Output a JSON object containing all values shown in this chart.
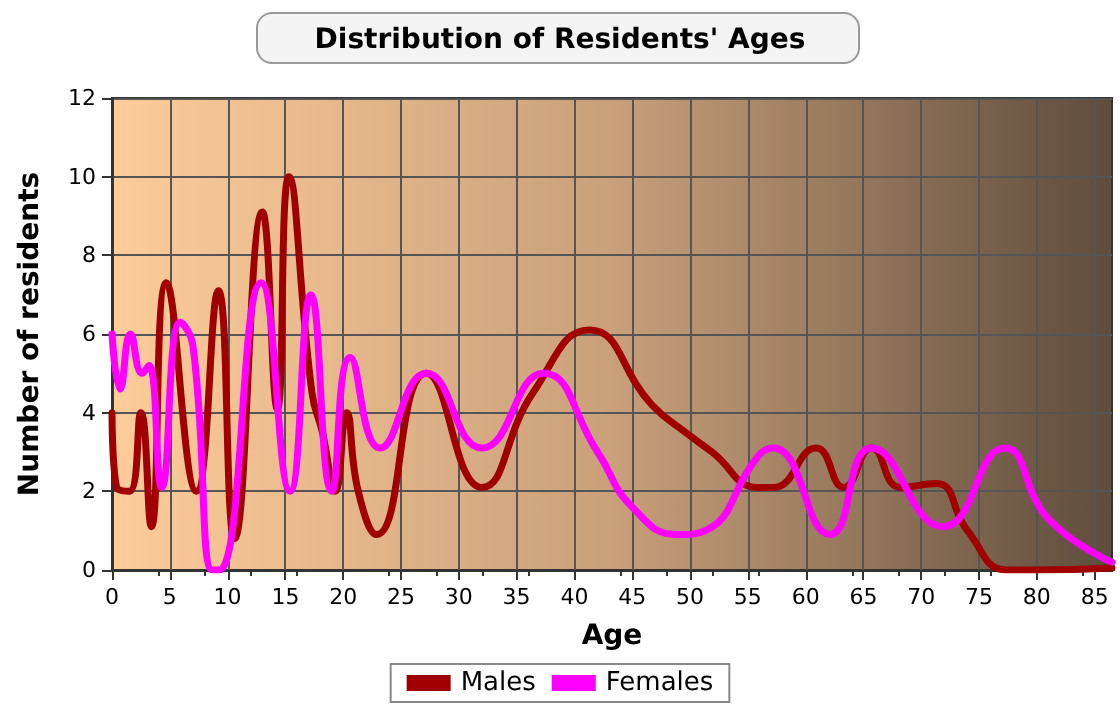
{
  "chart_data": {
    "type": "line",
    "title": "Distribution of Residents' Ages",
    "xlabel": "Age",
    "ylabel": "Number of residents",
    "xlim": [
      0,
      86.5
    ],
    "xticks": [
      0,
      5,
      10,
      15,
      20,
      25,
      30,
      35,
      40,
      45,
      50,
      55,
      60,
      65,
      70,
      75,
      80,
      85
    ],
    "ylim": [
      0,
      12
    ],
    "yticks": [
      0,
      2,
      4,
      6,
      8,
      10,
      12
    ],
    "grid": true,
    "legend": "bottom",
    "marker": "none",
    "line_style": "solid",
    "series": [
      {
        "name": "Males",
        "color": "#a00000",
        "x": [
          0,
          0.4,
          1.5,
          2.5,
          3.4,
          4.7,
          7.3,
          9.2,
          10.6,
          13,
          14.3,
          15.3,
          17.3,
          18.2,
          19.3,
          20.3,
          21.3,
          22.9,
          27.2,
          32,
          36.4,
          41.3,
          46.7,
          49.6,
          51.9,
          55.9,
          57.2,
          60.9,
          63.3,
          65.7,
          68.2,
          71.3,
          74,
          77.4,
          80,
          86.5
        ],
        "values": [
          4,
          2.1,
          2,
          4,
          1.1,
          7.3,
          2,
          7.1,
          0.8,
          9.1,
          4.1,
          10,
          4.5,
          3.5,
          2,
          4,
          2,
          0.9,
          5,
          2.1,
          4.5,
          6.1,
          4.2,
          3.5,
          3,
          2.1,
          2.1,
          3.1,
          2.1,
          3.1,
          2.1,
          2.2,
          1,
          0,
          0,
          0.05
        ]
      },
      {
        "name": "Females",
        "color": "#ff00ff",
        "x": [
          0,
          0.7,
          1.6,
          2.6,
          3.2,
          4.3,
          5.9,
          7,
          8.7,
          9.3,
          12.9,
          15.4,
          17.2,
          19,
          20.6,
          23.2,
          27.2,
          32,
          37.3,
          42,
          45,
          49,
          51.3,
          55.9,
          57.2,
          62.1,
          65.7,
          71.9,
          77.2,
          81,
          86.5
        ],
        "values": [
          6,
          4.6,
          6,
          5,
          5.2,
          2.1,
          6.3,
          5.7,
          0,
          0,
          7.3,
          2,
          7,
          2,
          5.4,
          3.1,
          5,
          3.1,
          5,
          3,
          1.6,
          0.9,
          1,
          2.9,
          3.1,
          0.9,
          3.1,
          1.1,
          3.1,
          1.3,
          0.2
        ]
      }
    ]
  }
}
